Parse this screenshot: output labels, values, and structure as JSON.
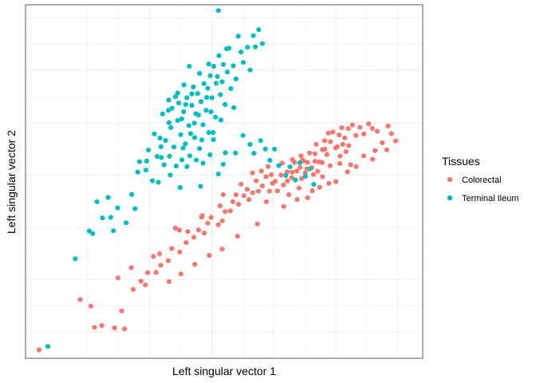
{
  "chart_data": {
    "type": "scatter",
    "xlabel": "Left singular vector 1",
    "ylabel": "Left singular vector 2",
    "xlim": [
      -0.1,
      0.06
    ],
    "ylim": [
      -0.07,
      0.065
    ],
    "x_major_ticks": [
      -0.075,
      -0.05,
      -0.025,
      0.0,
      0.025,
      0.05
    ],
    "y_major_ticks": [
      -0.06,
      -0.04,
      -0.02,
      0.0,
      0.02,
      0.04,
      0.06
    ],
    "tick_labels_shown": false,
    "grid": true,
    "legend": {
      "title": "Tissues",
      "position": "right",
      "entries": [
        "Colorectal",
        "Terminal Ileum"
      ]
    },
    "series": [
      {
        "name": "Colorectal",
        "color": "#F8766D",
        "points": [
          [
            -0.0945,
            -0.0668
          ],
          [
            -0.078,
            -0.0476
          ],
          [
            -0.0737,
            -0.0501
          ],
          [
            -0.0722,
            -0.0582
          ],
          [
            -0.0693,
            -0.0575
          ],
          [
            -0.0641,
            -0.0584
          ],
          [
            -0.0601,
            -0.0588
          ],
          [
            -0.0613,
            -0.0519
          ],
          [
            -0.0628,
            -0.0393
          ],
          [
            -0.0566,
            -0.0437
          ],
          [
            -0.0574,
            -0.0354
          ],
          [
            -0.0535,
            -0.0406
          ],
          [
            -0.0517,
            -0.042
          ],
          [
            -0.0508,
            -0.0373
          ],
          [
            -0.0474,
            -0.0372
          ],
          [
            -0.0455,
            -0.0345
          ],
          [
            -0.046,
            -0.0301
          ],
          [
            -0.0425,
            -0.0327
          ],
          [
            -0.0411,
            -0.0281
          ],
          [
            -0.0379,
            -0.0294
          ],
          [
            -0.038,
            -0.0211
          ],
          [
            -0.0353,
            -0.0258
          ],
          [
            -0.0346,
            -0.0216
          ],
          [
            -0.0322,
            -0.0238
          ],
          [
            -0.0303,
            -0.021
          ],
          [
            -0.028,
            -0.0222
          ],
          [
            -0.0291,
            -0.0161
          ],
          [
            -0.0266,
            -0.0184
          ],
          [
            -0.0252,
            -0.0162
          ],
          [
            -0.0223,
            -0.019
          ],
          [
            -0.0207,
            -0.0175
          ],
          [
            -0.0216,
            -0.0118
          ],
          [
            -0.0196,
            -0.014
          ],
          [
            -0.0175,
            -0.0137
          ],
          [
            -0.0165,
            -0.0102
          ],
          [
            -0.0142,
            -0.0112
          ],
          [
            -0.0152,
            -0.0076
          ],
          [
            -0.012,
            -0.0079
          ],
          [
            -0.01,
            -0.0094
          ],
          [
            -0.0107,
            -0.0055
          ],
          [
            -0.0085,
            -0.0068
          ],
          [
            -0.0062,
            -0.0062
          ],
          [
            -0.0071,
            -0.0022
          ],
          [
            -0.0046,
            -0.0042
          ],
          [
            -0.0031,
            -0.0007
          ],
          [
            -0.0017,
            -0.0062
          ],
          [
            -0.001,
            0.0001
          ],
          [
            0.0006,
            -0.0024
          ],
          [
            0.0015,
            -0.0061
          ],
          [
            0.0029,
            0.0
          ],
          [
            -0.0023,
            0.0032
          ],
          [
            0.0039,
            -0.0038
          ],
          [
            0.0054,
            0.0012
          ],
          [
            0.0061,
            -0.0075
          ],
          [
            0.0074,
            0.0011
          ],
          [
            0.0083,
            0.0048
          ],
          [
            0.0093,
            0.0015
          ],
          [
            0.0106,
            0.0029
          ],
          [
            0.0116,
            0.0057
          ],
          [
            0.0127,
            0.0008
          ],
          [
            0.0136,
            0.0048
          ],
          [
            0.0144,
            0.0084
          ],
          [
            0.0153,
            0.0028
          ],
          [
            0.0166,
            0.0081
          ],
          [
            0.0171,
            0.0117
          ],
          [
            0.0182,
            0.005
          ],
          [
            0.0196,
            0.0097
          ],
          [
            0.0205,
            0.0131
          ],
          [
            0.0214,
            0.0078
          ],
          [
            0.0228,
            0.0127
          ],
          [
            0.0238,
            0.0164
          ],
          [
            0.0249,
            0.0104
          ],
          [
            0.0263,
            0.0153
          ],
          [
            0.0274,
            0.018
          ],
          [
            0.0286,
            0.0142
          ],
          [
            0.03,
            0.0177
          ],
          [
            0.0317,
            0.0191
          ],
          [
            0.0331,
            0.0151
          ],
          [
            0.0347,
            0.0182
          ],
          [
            0.0363,
            0.0157
          ],
          [
            0.0382,
            0.0195
          ],
          [
            0.0397,
            0.0178
          ],
          [
            0.0417,
            0.0167
          ],
          [
            0.0437,
            0.0123
          ],
          [
            0.0455,
            0.0096
          ],
          [
            0.0461,
            0.0187
          ],
          [
            0.0474,
            0.0158
          ],
          [
            0.0491,
            0.013
          ],
          [
            0.0408,
            0.0093
          ],
          [
            0.0398,
            0.006
          ],
          [
            0.0362,
            0.0073
          ],
          [
            0.0332,
            0.0032
          ],
          [
            0.0297,
            0.0012
          ],
          [
            0.0266,
            0.0044
          ],
          [
            0.025,
            -0.0025
          ],
          [
            0.0222,
            -0.0032
          ],
          [
            0.0185,
            -0.0047
          ],
          [
            0.0155,
            -0.006
          ],
          [
            0.0136,
            -0.0087
          ],
          [
            0.0094,
            -0.0094
          ],
          [
            0.004,
            -0.012
          ],
          [
            -0.0066,
            -0.0187
          ],
          [
            -0.0146,
            -0.0234
          ],
          [
            -0.0208,
            -0.0283
          ],
          [
            -0.026,
            -0.0307
          ],
          [
            -0.0318,
            -0.0341
          ],
          [
            -0.0374,
            -0.0378
          ],
          [
            -0.0422,
            -0.0407
          ],
          [
            -0.0485,
            -0.0311
          ],
          [
            -0.0396,
            -0.0203
          ],
          [
            -0.0288,
            -0.0155
          ],
          [
            -0.0204,
            -0.0075
          ],
          [
            -0.0132,
            -0.0035
          ],
          [
            -0.0086,
            0.0008
          ],
          [
            -0.003,
            -0.0102
          ],
          [
            0.0055,
            -0.0023
          ],
          [
            0.011,
            0.0073
          ],
          [
            0.0177,
            0.0014
          ],
          [
            0.022,
            0.016
          ],
          [
            0.0267,
            0.0072
          ],
          [
            0.0302,
            0.0112
          ],
          [
            0.031,
            0.0039
          ],
          [
            0.0227,
            0.0035
          ],
          [
            0.0195,
            0.0047
          ],
          [
            0.016,
            0.0002
          ],
          [
            0.012,
            0.0054
          ],
          [
            0.0072,
            -0.001
          ],
          [
            0.0034,
            0.0045
          ],
          [
            -0.0005,
            -0.0032
          ],
          [
            -0.005,
            0.0015
          ],
          [
            0.0256,
            0.0108
          ],
          [
            0.0206,
            0.0098
          ],
          [
            0.0166,
            0.0052
          ],
          [
            0.0102,
            -0.005
          ],
          [
            0.0075,
            0.0059
          ],
          [
            0.0196,
            -0.0007
          ],
          [
            0.0133,
            0.0023
          ],
          [
            0.0112,
            -0.0014
          ],
          [
            0.0278,
            0.0117
          ],
          [
            0.0291,
            0.0089
          ]
        ]
      },
      {
        "name": "Terminal Ileum",
        "color": "#00BFC4",
        "points": [
          [
            -0.091,
            -0.0655
          ],
          [
            -0.08,
            -0.032
          ],
          [
            -0.0743,
            -0.0214
          ],
          [
            -0.0729,
            -0.0224
          ],
          [
            -0.0712,
            -0.0102
          ],
          [
            -0.069,
            -0.0164
          ],
          [
            -0.0667,
            -0.0086
          ],
          [
            -0.0657,
            -0.0162
          ],
          [
            -0.0646,
            -0.0213
          ],
          [
            -0.0629,
            -0.0126
          ],
          [
            -0.0595,
            -0.0183
          ],
          [
            -0.0572,
            -0.0074
          ],
          [
            -0.0559,
            -0.0129
          ],
          [
            -0.0548,
            0.0011
          ],
          [
            -0.0541,
            0.0051
          ],
          [
            -0.0515,
            0.0019
          ],
          [
            -0.0505,
            0.0095
          ],
          [
            -0.0489,
            -0.0022
          ],
          [
            -0.0481,
            0.0157
          ],
          [
            -0.047,
            0.0071
          ],
          [
            -0.0465,
            -0.0028
          ],
          [
            -0.0454,
            0.0108
          ],
          [
            -0.0448,
            0.0233
          ],
          [
            -0.0442,
            0.0039
          ],
          [
            -0.0436,
            0.0132
          ],
          [
            -0.0424,
            0.0247
          ],
          [
            -0.042,
            0.0072
          ],
          [
            -0.0415,
            0.0181
          ],
          [
            -0.041,
            0.0255
          ],
          [
            -0.0402,
            0.0107
          ],
          [
            -0.0393,
            0.0034
          ],
          [
            -0.0387,
            0.0208
          ],
          [
            -0.0383,
            0.0275
          ],
          [
            -0.0375,
            0.0154
          ],
          [
            -0.037,
            0.0058
          ],
          [
            -0.0363,
            0.0242
          ],
          [
            -0.0356,
            0.0119
          ],
          [
            -0.035,
            0.0295
          ],
          [
            -0.0342,
            0.0189
          ],
          [
            -0.0338,
            0.0073
          ],
          [
            -0.033,
            0.0266
          ],
          [
            -0.0324,
            0.0336
          ],
          [
            -0.0319,
            0.0143
          ],
          [
            -0.0314,
            0.0234
          ],
          [
            -0.0307,
            0.0311
          ],
          [
            -0.0299,
            0.0101
          ],
          [
            -0.0293,
            0.028
          ],
          [
            -0.0285,
            0.0192
          ],
          [
            -0.0281,
            0.0349
          ],
          [
            -0.0273,
            0.0247
          ],
          [
            -0.0266,
            0.0331
          ],
          [
            -0.0262,
            0.0162
          ],
          [
            -0.0256,
            0.0379
          ],
          [
            -0.0249,
            0.0295
          ],
          [
            -0.0242,
            0.0415
          ],
          [
            -0.0235,
            0.0221
          ],
          [
            -0.0227,
            0.0376
          ],
          [
            -0.0221,
            0.0456
          ],
          [
            -0.0215,
            0.0307
          ],
          [
            -0.0208,
            0.0356
          ],
          [
            -0.0203,
            0.0422
          ],
          [
            -0.0196,
            0.0269
          ],
          [
            -0.0187,
            0.0393
          ],
          [
            -0.018,
            0.0484
          ],
          [
            -0.0173,
            0.033
          ],
          [
            -0.0163,
            0.0417
          ],
          [
            -0.0152,
            0.0367
          ],
          [
            -0.0143,
            0.053
          ],
          [
            -0.0132,
            0.047
          ],
          [
            -0.0123,
            0.043
          ],
          [
            -0.0106,
            0.0488
          ],
          [
            -0.0095,
            0.0401
          ],
          [
            -0.0082,
            0.0532
          ],
          [
            -0.0074,
            0.0489
          ],
          [
            -0.0061,
            0.0555
          ],
          [
            -0.019,
            0.0482
          ],
          [
            -0.0046,
            0.0502
          ],
          [
            -0.0223,
            0.0628
          ],
          [
            -0.0124,
            0.0151
          ],
          [
            -0.0096,
            0.0117
          ],
          [
            -0.008,
            0.0083
          ],
          [
            -0.0053,
            0.0131
          ],
          [
            -0.0034,
            0.0099
          ],
          [
            -0.0016,
            0.0056
          ],
          [
            0.0003,
            0.0099
          ],
          [
            0.002,
            0.0036
          ],
          [
            0.0048,
            -0.0002
          ],
          [
            0.0065,
            0.0031
          ],
          [
            0.0087,
            -0.0019
          ],
          [
            0.0105,
            0.0047
          ],
          [
            0.0127,
            -0.0005
          ],
          [
            0.0145,
            0.0023
          ],
          [
            0.0161,
            -0.0036
          ],
          [
            -0.032,
            0.0198
          ],
          [
            -0.035,
            0.0032
          ],
          [
            -0.0377,
            -0.0048
          ],
          [
            -0.0417,
            0.0
          ],
          [
            -0.0453,
            0.0067
          ],
          [
            -0.0512,
            0.0053
          ],
          [
            -0.0285,
            0.0045
          ],
          [
            -0.0243,
            0.0135
          ],
          [
            -0.0195,
            0.0085
          ],
          [
            -0.0223,
            0.0004
          ],
          [
            -0.0154,
            0.0084
          ],
          [
            -0.0295,
            -0.0043
          ],
          [
            -0.0362,
            0.0344
          ],
          [
            -0.0396,
            0.0299
          ],
          [
            -0.0423,
            0.0286
          ],
          [
            -0.0458,
            0.0141
          ],
          [
            -0.0335,
            0.0158
          ],
          [
            -0.0303,
            0.0229
          ],
          [
            -0.027,
            0.0296
          ],
          [
            -0.0244,
            0.0162
          ],
          [
            -0.0213,
            0.021
          ],
          [
            -0.0161,
            0.0257
          ],
          [
            -0.034,
            0.0415
          ],
          [
            -0.0299,
            0.0388
          ],
          [
            -0.0262,
            0.0424
          ],
          [
            -0.0232,
            0.035
          ],
          [
            -0.0387,
            0.0313
          ],
          [
            -0.0422,
            0.02
          ],
          [
            -0.0365,
            0.0103
          ],
          [
            -0.0312,
            0.0057
          ],
          [
            -0.0257,
            0.0077
          ],
          [
            -0.0204,
            0.0041
          ],
          [
            -0.0355,
            0.0269
          ],
          [
            -0.033,
            0.031
          ],
          [
            -0.0371,
            0.0214
          ],
          [
            -0.029,
            0.0134
          ],
          [
            -0.0253,
            0.0241
          ]
        ]
      }
    ]
  }
}
